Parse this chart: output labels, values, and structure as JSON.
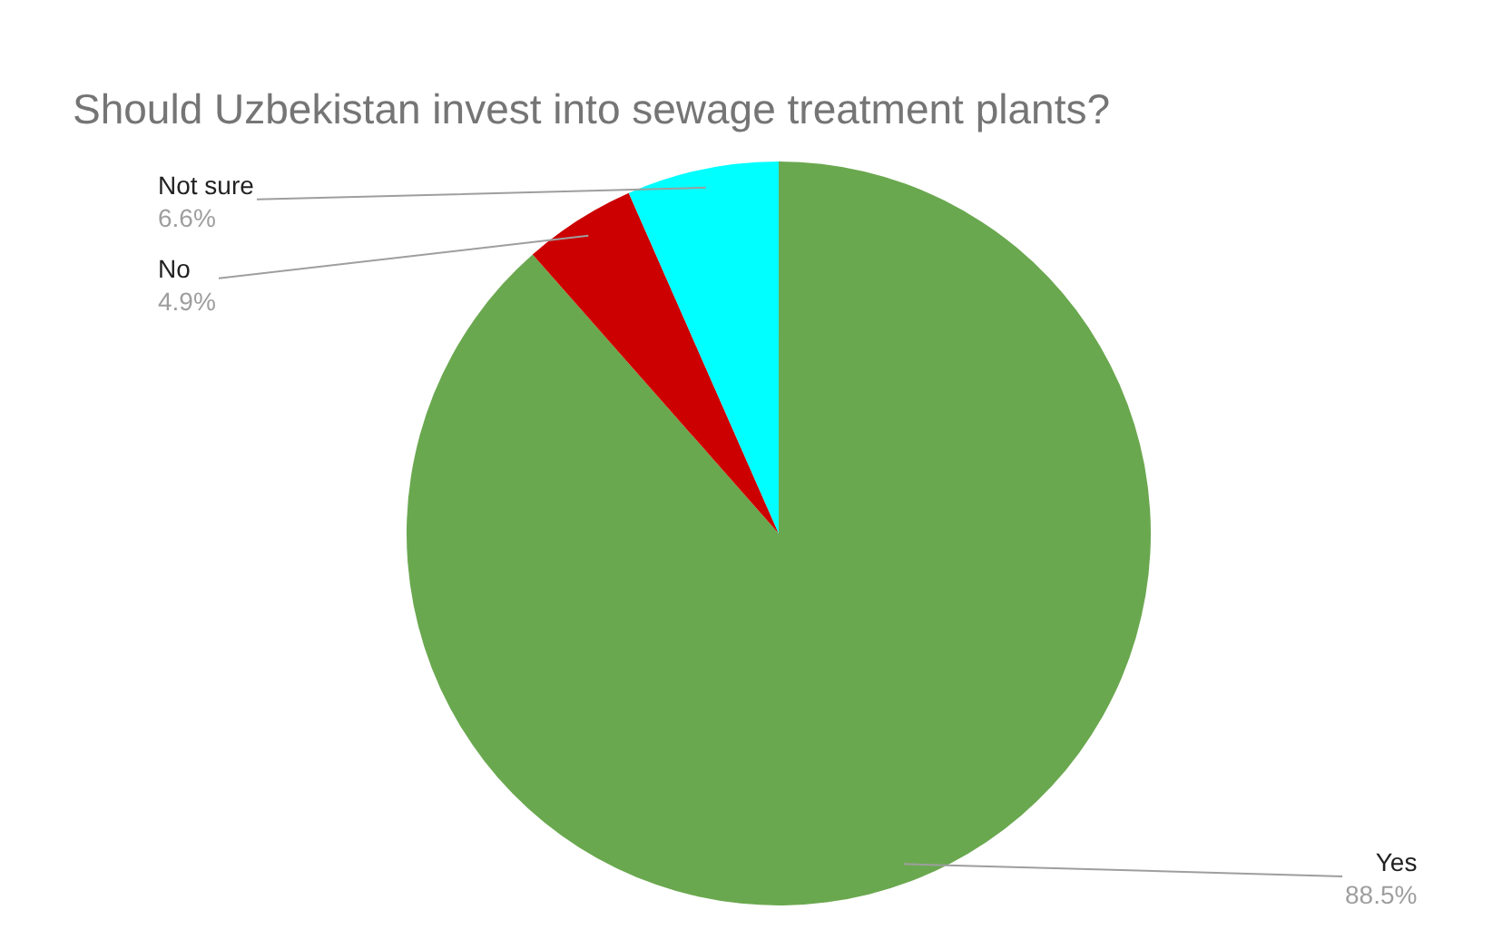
{
  "chart_data": {
    "type": "pie",
    "title": "Should Uzbekistan invest into sewage treatment plants?",
    "categories": [
      "Yes",
      "No",
      "Not sure"
    ],
    "values": [
      88.5,
      4.9,
      6.6
    ],
    "value_labels": [
      "88.5%",
      "4.9%",
      "6.6%"
    ],
    "colors": [
      "#6aa84f",
      "#cc0000",
      "#00ffff"
    ],
    "legend": false
  }
}
